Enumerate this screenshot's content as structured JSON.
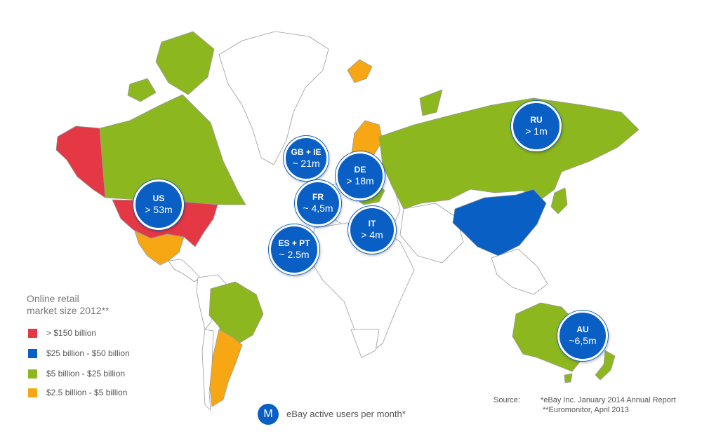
{
  "colors": {
    "tier1": "#e53845",
    "tier2": "#0a5fc4",
    "tier3": "#8db71f",
    "tier4": "#f6a713",
    "none": "#ffffff",
    "border": "#9a9a9a",
    "bubble": "#0a5fc4"
  },
  "legend": {
    "title": "Online retail\nmarket size 2012**",
    "items": [
      {
        "label": "> $150 billion",
        "color": "#e53845"
      },
      {
        "label": "$25 billion - $50 billion",
        "color": "#0a5fc4"
      },
      {
        "label": "$5 billion - $25 billion",
        "color": "#8db71f"
      },
      {
        "label": "$2.5 billion - $5 billion",
        "color": "#f6a713"
      }
    ]
  },
  "bubbles": [
    {
      "code": "US",
      "value": "> 53m"
    },
    {
      "code": "GB + IE",
      "value": "~ 21m"
    },
    {
      "code": "DE",
      "value": "> 18m"
    },
    {
      "code": "FR",
      "value": "~ 4,5m"
    },
    {
      "code": "IT",
      "value": "> 4m"
    },
    {
      "code": "ES + PT",
      "value": "~ 2.5m"
    },
    {
      "code": "RU",
      "value": "> 1m"
    },
    {
      "code": "AU",
      "value": "~6,5m"
    }
  ],
  "users_legend": {
    "symbol": "M",
    "label": "eBay active users per month*"
  },
  "source": {
    "label": "Source:",
    "lines": [
      "*eBay Inc. January  2014 Annual Report",
      "**Euromonitor, April 2013"
    ]
  }
}
